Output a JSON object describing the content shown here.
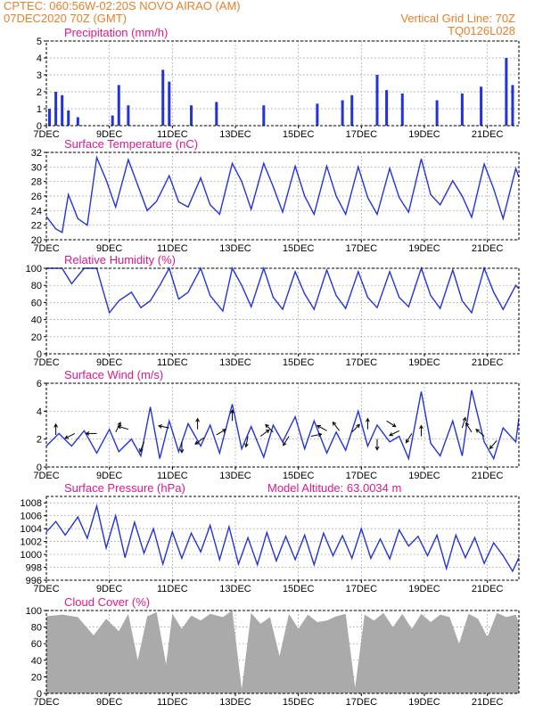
{
  "header": {
    "line1_left": "CPTEC:   060:56W-02:20S   NOVO AIRAO (AM)",
    "line2_left": "07DEC2020 70Z (GMT)",
    "line1_right": "Vertical Grid Line: 70Z",
    "line2_right": "TQ0126L028"
  },
  "colors": {
    "header": "#e8802a",
    "title": "#e0188c",
    "line": "#2233dd",
    "cloud": "#aaaaaa",
    "grid": "#888888"
  },
  "x_tick_labels": [
    "7DEC",
    "9DEC",
    "11DEC",
    "13DEC",
    "15DEC",
    "17DEC",
    "19DEC",
    "21DEC"
  ],
  "panels": {
    "precip": {
      "title": "Precipitation (mm/h)"
    },
    "temp": {
      "title": "Surface Temperature (nC)"
    },
    "rh": {
      "title": "Relative Humidity (%)"
    },
    "wind": {
      "title": "Surface Wind (m/s)"
    },
    "pres": {
      "title": "Surface Pressure (hPa)",
      "extra": "Model Altitude: 63.0034 m"
    },
    "cloud": {
      "title": "Cloud Cover (%)"
    }
  },
  "chart_data": [
    {
      "type": "bar",
      "id": "precip",
      "title": "Precipitation (mm/h)",
      "xlim_days": [
        7,
        22
      ],
      "ylim": [
        0,
        5
      ],
      "yticks": [
        0,
        1,
        2,
        3,
        4,
        5
      ],
      "x": [
        7.1,
        7.3,
        7.5,
        7.7,
        8.0,
        9.1,
        9.3,
        9.6,
        10.7,
        10.9,
        11.6,
        12.4,
        13.9,
        15.6,
        16.4,
        16.7,
        17.5,
        17.8,
        18.3,
        19.4,
        20.2,
        20.8,
        21.6,
        21.8
      ],
      "values": [
        1.0,
        2.0,
        1.8,
        0.9,
        0.5,
        0.6,
        2.4,
        1.2,
        3.3,
        2.6,
        1.2,
        1.4,
        1.2,
        1.3,
        1.5,
        1.8,
        3.0,
        2.1,
        1.9,
        1.5,
        1.9,
        2.3,
        4.0,
        2.4
      ]
    },
    {
      "type": "line",
      "id": "temp",
      "title": "Surface Temperature (nC)",
      "xlim_days": [
        7,
        22
      ],
      "ylim": [
        20,
        32
      ],
      "yticks": [
        20,
        22,
        24,
        26,
        28,
        30,
        32
      ],
      "x": [
        7.0,
        7.3,
        7.5,
        7.7,
        8.0,
        8.3,
        8.6,
        8.9,
        9.2,
        9.6,
        9.9,
        10.2,
        10.5,
        10.9,
        11.2,
        11.5,
        11.9,
        12.2,
        12.5,
        12.9,
        13.2,
        13.5,
        13.9,
        14.2,
        14.5,
        14.9,
        15.2,
        15.5,
        15.9,
        16.2,
        16.5,
        16.9,
        17.2,
        17.5,
        17.9,
        18.2,
        18.5,
        18.9,
        19.2,
        19.5,
        19.9,
        20.2,
        20.5,
        20.9,
        21.2,
        21.5,
        21.9,
        22.0
      ],
      "values": [
        23.2,
        21.5,
        21.0,
        26.2,
        22.9,
        22.0,
        31.3,
        28.2,
        24.5,
        31.0,
        27.5,
        24.0,
        25.3,
        28.8,
        25.2,
        24.5,
        28.5,
        24.8,
        23.5,
        30.5,
        28.0,
        24.2,
        30.5,
        27.3,
        23.8,
        30.1,
        26.0,
        23.5,
        30.1,
        26.0,
        23.5,
        30.0,
        25.8,
        23.5,
        29.8,
        25.8,
        23.8,
        31.1,
        26.2,
        24.8,
        28.1,
        26.0,
        23.1,
        30.4,
        27.0,
        22.9,
        29.8,
        28.6
      ]
    },
    {
      "type": "line",
      "id": "rh",
      "title": "Relative Humidity (%)",
      "xlim_days": [
        7,
        22
      ],
      "ylim": [
        0,
        100
      ],
      "yticks": [
        0,
        20,
        40,
        60,
        80,
        100
      ],
      "x": [
        7.0,
        7.5,
        7.8,
        8.2,
        8.6,
        9.0,
        9.3,
        9.7,
        10.0,
        10.3,
        10.6,
        10.9,
        11.2,
        11.5,
        11.9,
        12.2,
        12.6,
        12.9,
        13.2,
        13.5,
        13.9,
        14.2,
        14.5,
        14.9,
        15.2,
        15.5,
        15.9,
        16.2,
        16.5,
        16.9,
        17.2,
        17.5,
        17.9,
        18.2,
        18.5,
        18.9,
        19.2,
        19.5,
        19.9,
        20.2,
        20.5,
        20.9,
        21.2,
        21.5,
        21.9,
        22.0
      ],
      "values": [
        100,
        100,
        82,
        100,
        100,
        48,
        62,
        72,
        54,
        62,
        80,
        100,
        64,
        72,
        100,
        68,
        50,
        100,
        80,
        55,
        100,
        66,
        52,
        96,
        70,
        52,
        98,
        68,
        53,
        96,
        66,
        54,
        96,
        66,
        55,
        100,
        68,
        53,
        98,
        62,
        48,
        100,
        72,
        52,
        80,
        76
      ]
    },
    {
      "type": "line",
      "id": "wind",
      "title": "Surface Wind (m/s)",
      "xlim_days": [
        7,
        22
      ],
      "ylim": [
        0,
        6
      ],
      "yticks": [
        0,
        2,
        4,
        6
      ],
      "x": [
        7.0,
        7.4,
        7.8,
        8.2,
        8.6,
        9.0,
        9.3,
        9.7,
        10.0,
        10.3,
        10.6,
        10.9,
        11.2,
        11.5,
        11.9,
        12.2,
        12.5,
        12.9,
        13.2,
        13.5,
        13.9,
        14.2,
        14.5,
        14.9,
        15.2,
        15.5,
        15.9,
        16.2,
        16.5,
        16.9,
        17.2,
        17.5,
        17.9,
        18.2,
        18.5,
        18.9,
        19.2,
        19.5,
        19.9,
        20.2,
        20.5,
        20.9,
        21.2,
        21.5,
        21.9,
        22.0
      ],
      "values": [
        1.5,
        2.4,
        1.5,
        2.6,
        1.0,
        2.7,
        1.1,
        2.0,
        0.8,
        4.3,
        0.6,
        3.3,
        1.1,
        3.1,
        1.5,
        3.0,
        1.0,
        4.5,
        1.3,
        2.9,
        0.7,
        3.0,
        1.8,
        3.6,
        1.3,
        3.3,
        1.0,
        2.5,
        1.2,
        4.0,
        1.5,
        3.0,
        1.8,
        2.2,
        0.6,
        5.4,
        1.7,
        0.8,
        3.3,
        0.8,
        5.5,
        1.8,
        0.6,
        2.8,
        1.8,
        3.5
      ],
      "arrows": [
        {
          "x": 7.3,
          "y": 2.3,
          "u": 0,
          "v": 1
        },
        {
          "x": 7.9,
          "y": 2.4,
          "u": -1,
          "v": -0.5
        },
        {
          "x": 8.6,
          "y": 2.4,
          "u": -1,
          "v": 0
        },
        {
          "x": 9.2,
          "y": 2.5,
          "u": 0.5,
          "v": 1
        },
        {
          "x": 9.6,
          "y": 2.7,
          "u": -1,
          "v": 0.3
        },
        {
          "x": 10.1,
          "y": 1.8,
          "u": -0.4,
          "v": -1
        },
        {
          "x": 10.9,
          "y": 2.8,
          "u": -1,
          "v": 0.2
        },
        {
          "x": 11.3,
          "y": 1.8,
          "u": 0,
          "v": -1
        },
        {
          "x": 11.8,
          "y": 2.7,
          "u": 0,
          "v": 1
        },
        {
          "x": 12.0,
          "y": 2.1,
          "u": -0.8,
          "v": -0.6
        },
        {
          "x": 12.4,
          "y": 2.3,
          "u": 1,
          "v": 0.6
        },
        {
          "x": 12.9,
          "y": 3.3,
          "u": 0,
          "v": 1
        },
        {
          "x": 13.4,
          "y": 2.2,
          "u": -0.2,
          "v": -1
        },
        {
          "x": 13.8,
          "y": 2.2,
          "u": 0.8,
          "v": 0.6
        },
        {
          "x": 14.2,
          "y": 2.5,
          "u": -0.7,
          "v": 0.7
        },
        {
          "x": 14.7,
          "y": 2.2,
          "u": -0.5,
          "v": -0.8
        },
        {
          "x": 15.4,
          "y": 2.2,
          "u": 1,
          "v": 0.2
        },
        {
          "x": 15.9,
          "y": 2.6,
          "u": -0.9,
          "v": 0.5
        },
        {
          "x": 16.3,
          "y": 2.6,
          "u": -0.6,
          "v": 0.8
        },
        {
          "x": 16.7,
          "y": 2.5,
          "u": 0.7,
          "v": 0.7
        },
        {
          "x": 17.2,
          "y": 2.7,
          "u": 0,
          "v": 1
        },
        {
          "x": 17.5,
          "y": 2.0,
          "u": 0,
          "v": -1
        },
        {
          "x": 17.8,
          "y": 3.3,
          "u": 0.8,
          "v": -0.5
        },
        {
          "x": 18.2,
          "y": 2.6,
          "u": -0.8,
          "v": -0.4
        },
        {
          "x": 18.6,
          "y": 2.4,
          "u": -0.5,
          "v": -0.8
        },
        {
          "x": 18.9,
          "y": 2.2,
          "u": 0,
          "v": 1
        },
        {
          "x": 20.2,
          "y": 2.8,
          "u": 0.3,
          "v": 1
        },
        {
          "x": 20.5,
          "y": 2.5,
          "u": -0.5,
          "v": 0.8
        },
        {
          "x": 20.9,
          "y": 2.2,
          "u": -0.7,
          "v": 0.6
        },
        {
          "x": 21.3,
          "y": 1.9,
          "u": -0.6,
          "v": -0.7
        }
      ]
    },
    {
      "type": "line",
      "id": "pres",
      "title": "Surface Pressure (hPa)",
      "xlim_days": [
        7,
        22
      ],
      "ylim": [
        996,
        1009
      ],
      "yticks": [
        996,
        998,
        1000,
        1002,
        1004,
        1006,
        1008
      ],
      "x": [
        7.0,
        7.3,
        7.6,
        8.0,
        8.3,
        8.6,
        8.9,
        9.2,
        9.5,
        9.8,
        10.1,
        10.4,
        10.7,
        11.0,
        11.3,
        11.6,
        11.9,
        12.2,
        12.5,
        12.8,
        13.1,
        13.4,
        13.7,
        14.0,
        14.3,
        14.6,
        14.9,
        15.2,
        15.5,
        15.8,
        16.1,
        16.4,
        16.7,
        17.0,
        17.3,
        17.6,
        17.9,
        18.2,
        18.5,
        18.8,
        19.1,
        19.4,
        19.7,
        20.0,
        20.3,
        20.6,
        20.9,
        21.2,
        21.5,
        21.8,
        22.0
      ],
      "values": [
        1003.5,
        1005.1,
        1003.0,
        1005.8,
        1002.5,
        1007.5,
        1001.0,
        1006.0,
        999.5,
        1005.0,
        1000.2,
        1004.0,
        998.5,
        1003.5,
        999.4,
        1003.3,
        1000.4,
        1004.5,
        999.2,
        1004.3,
        998.5,
        1002.6,
        998.4,
        1003.4,
        999.0,
        1002.8,
        999.2,
        1003.0,
        998.4,
        1003.3,
        999.8,
        1002.9,
        999.4,
        1004.0,
        999.4,
        1002.4,
        999.3,
        1003.8,
        1001.3,
        1002.8,
        999.8,
        1003.0,
        997.8,
        1003.0,
        999.5,
        1002.6,
        998.6,
        1001.8,
        999.8,
        997.4,
        999.5
      ]
    },
    {
      "type": "area",
      "id": "cloud",
      "title": "Cloud Cover (%)",
      "xlim_days": [
        7,
        22
      ],
      "ylim": [
        0,
        100
      ],
      "yticks": [
        0,
        20,
        40,
        60,
        80,
        100
      ],
      "x": [
        7.0,
        7.5,
        8.0,
        8.5,
        8.9,
        9.3,
        9.6,
        9.9,
        10.2,
        10.5,
        10.8,
        11.0,
        11.3,
        11.6,
        11.9,
        12.2,
        12.6,
        12.9,
        13.2,
        13.5,
        13.8,
        14.1,
        14.4,
        14.7,
        15.0,
        15.3,
        15.6,
        15.9,
        16.2,
        16.5,
        16.8,
        17.1,
        17.4,
        17.7,
        18.0,
        18.3,
        18.6,
        18.9,
        19.2,
        19.5,
        19.8,
        20.1,
        20.4,
        20.7,
        21.0,
        21.3,
        21.6,
        21.9,
        22.0
      ],
      "values": [
        93,
        95,
        92,
        70,
        90,
        75,
        96,
        40,
        93,
        98,
        35,
        96,
        78,
        94,
        88,
        96,
        92,
        100,
        5,
        97,
        84,
        92,
        45,
        96,
        78,
        95,
        86,
        88,
        93,
        96,
        7,
        95,
        88,
        97,
        80,
        96,
        78,
        96,
        86,
        95,
        92,
        60,
        96,
        90,
        68,
        97,
        92,
        95,
        85
      ]
    }
  ]
}
